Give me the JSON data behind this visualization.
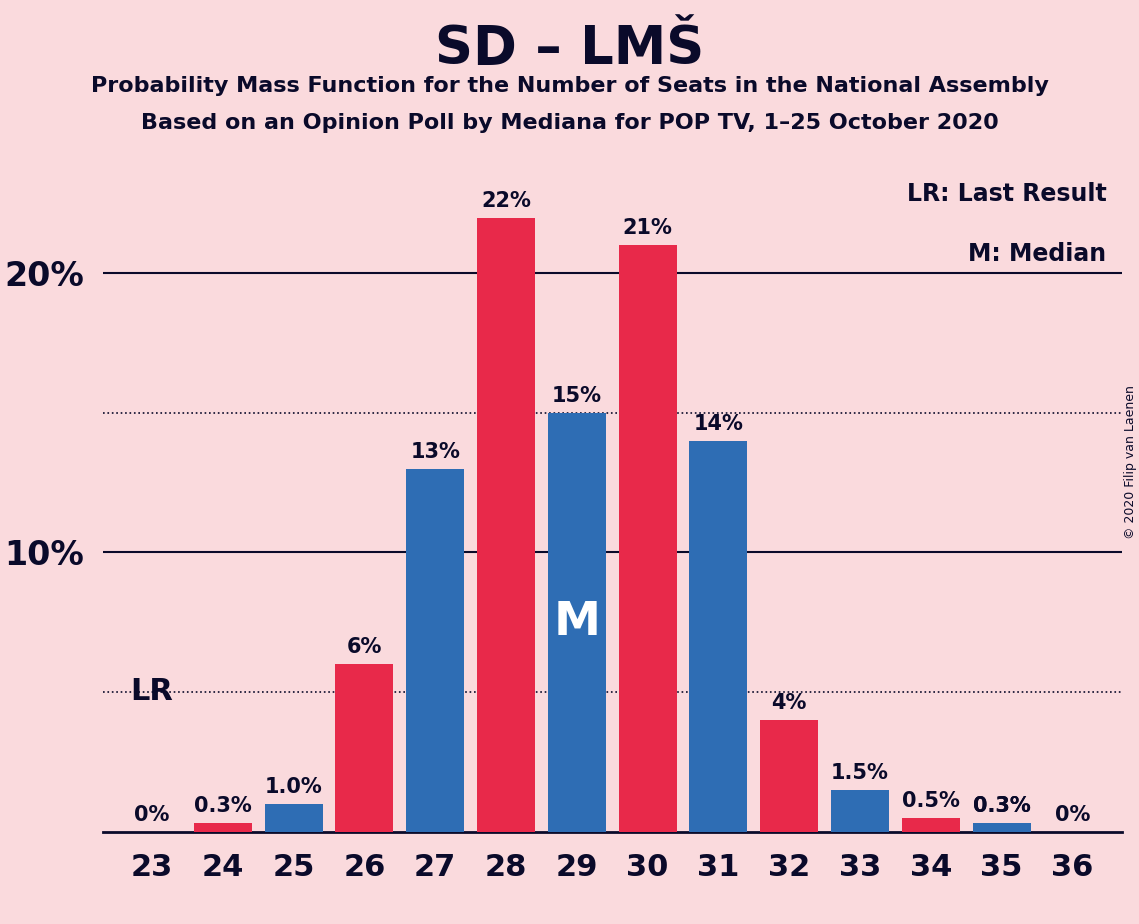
{
  "title": "SD – LMŠ",
  "subtitle1": "Probability Mass Function for the Number of Seats in the National Assembly",
  "subtitle2": "Based on an Opinion Poll by Mediana for POP TV, 1–25 October 2020",
  "copyright": "© 2020 Filip van Laenen",
  "seats": [
    23,
    24,
    25,
    26,
    27,
    28,
    29,
    30,
    31,
    32,
    33,
    34,
    35,
    36
  ],
  "red_values": [
    0.0,
    0.3,
    0.0,
    6.0,
    0.0,
    22.0,
    0.0,
    21.0,
    0.0,
    4.0,
    0.0,
    0.5,
    0.3,
    0.0
  ],
  "blue_values": [
    0.0,
    0.0,
    1.0,
    0.0,
    13.0,
    0.0,
    15.0,
    0.0,
    14.0,
    0.0,
    1.5,
    0.0,
    0.3,
    0.0
  ],
  "red_labels": [
    "0%",
    "0.3%",
    "",
    "6%",
    "",
    "22%",
    "",
    "21%",
    "",
    "4%",
    "",
    "0.5%",
    "0.3%",
    "0%"
  ],
  "blue_labels": [
    "",
    "",
    "1.0%",
    "",
    "13%",
    "",
    "15%",
    "",
    "14%",
    "",
    "1.5%",
    "",
    "0.3%",
    ""
  ],
  "median_seat_idx": 6,
  "lr_seat_idx": 0,
  "red_color": "#E8294A",
  "blue_color": "#2E6DB4",
  "background_color": "#FADADD",
  "text_color": "#0A0A2A",
  "ylim": [
    0,
    24
  ],
  "solid_gridlines": [
    10.0,
    20.0
  ],
  "dotted_gridlines": [
    5.0,
    15.0
  ],
  "bar_width": 0.45,
  "bar_gap": 0.02
}
